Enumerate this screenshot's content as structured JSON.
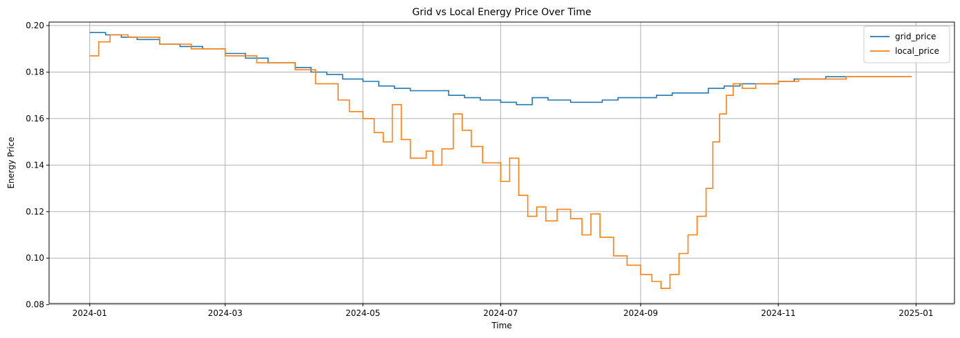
{
  "chart_data": {
    "type": "line",
    "title": "Grid vs Local Energy Price Over Time",
    "xlabel": "Time",
    "ylabel": "Energy Price",
    "x_ticks": [
      "2024-01",
      "2024-03",
      "2024-05",
      "2024-07",
      "2024-09",
      "2024-11",
      "2025-01"
    ],
    "y_ticks": [
      "0.08",
      "0.10",
      "0.12",
      "0.14",
      "0.16",
      "0.18",
      "0.20"
    ],
    "xlim": [
      "2023-12-14",
      "2025-01-18"
    ],
    "ylim": [
      0.0805,
      0.2015
    ],
    "grid": true,
    "legend_position": "top-right",
    "series": [
      {
        "name": "grid_price",
        "color": "#1f77b4",
        "points": [
          [
            "2024-01-01",
            0.197
          ],
          [
            "2024-01-08",
            0.196
          ],
          [
            "2024-01-15",
            0.195
          ],
          [
            "2024-01-22",
            0.194
          ],
          [
            "2024-02-01",
            0.192
          ],
          [
            "2024-02-10",
            0.191
          ],
          [
            "2024-02-20",
            0.19
          ],
          [
            "2024-03-01",
            0.188
          ],
          [
            "2024-03-10",
            0.186
          ],
          [
            "2024-03-20",
            0.184
          ],
          [
            "2024-04-01",
            0.182
          ],
          [
            "2024-04-08",
            0.18
          ],
          [
            "2024-04-15",
            0.179
          ],
          [
            "2024-04-22",
            0.177
          ],
          [
            "2024-05-01",
            0.176
          ],
          [
            "2024-05-08",
            0.174
          ],
          [
            "2024-05-15",
            0.173
          ],
          [
            "2024-05-22",
            0.172
          ],
          [
            "2024-06-01",
            0.172
          ],
          [
            "2024-06-08",
            0.17
          ],
          [
            "2024-06-15",
            0.169
          ],
          [
            "2024-06-22",
            0.168
          ],
          [
            "2024-07-01",
            0.167
          ],
          [
            "2024-07-08",
            0.166
          ],
          [
            "2024-07-15",
            0.169
          ],
          [
            "2024-07-22",
            0.168
          ],
          [
            "2024-08-01",
            0.167
          ],
          [
            "2024-08-08",
            0.167
          ],
          [
            "2024-08-15",
            0.168
          ],
          [
            "2024-08-22",
            0.169
          ],
          [
            "2024-09-01",
            0.169
          ],
          [
            "2024-09-08",
            0.17
          ],
          [
            "2024-09-15",
            0.171
          ],
          [
            "2024-09-22",
            0.171
          ],
          [
            "2024-10-01",
            0.173
          ],
          [
            "2024-10-08",
            0.174
          ],
          [
            "2024-10-15",
            0.175
          ],
          [
            "2024-10-22",
            0.175
          ],
          [
            "2024-11-01",
            0.176
          ],
          [
            "2024-11-08",
            0.177
          ],
          [
            "2024-11-15",
            0.177
          ],
          [
            "2024-11-22",
            0.178
          ],
          [
            "2024-12-01",
            0.178
          ],
          [
            "2024-12-10",
            0.178
          ],
          [
            "2024-12-20",
            0.178
          ],
          [
            "2024-12-30",
            0.178
          ]
        ]
      },
      {
        "name": "local_price",
        "color": "#ff7f0e",
        "points": [
          [
            "2024-01-01",
            0.187
          ],
          [
            "2024-01-05",
            0.193
          ],
          [
            "2024-01-10",
            0.196
          ],
          [
            "2024-01-18",
            0.195
          ],
          [
            "2024-02-01",
            0.192
          ],
          [
            "2024-02-15",
            0.19
          ],
          [
            "2024-03-01",
            0.187
          ],
          [
            "2024-03-15",
            0.184
          ],
          [
            "2024-04-01",
            0.181
          ],
          [
            "2024-04-10",
            0.175
          ],
          [
            "2024-04-20",
            0.168
          ],
          [
            "2024-04-25",
            0.163
          ],
          [
            "2024-05-01",
            0.16
          ],
          [
            "2024-05-06",
            0.154
          ],
          [
            "2024-05-10",
            0.15
          ],
          [
            "2024-05-14",
            0.166
          ],
          [
            "2024-05-18",
            0.151
          ],
          [
            "2024-05-22",
            0.143
          ],
          [
            "2024-05-29",
            0.146
          ],
          [
            "2024-06-01",
            0.14
          ],
          [
            "2024-06-05",
            0.147
          ],
          [
            "2024-06-10",
            0.162
          ],
          [
            "2024-06-14",
            0.155
          ],
          [
            "2024-06-18",
            0.148
          ],
          [
            "2024-06-23",
            0.141
          ],
          [
            "2024-07-01",
            0.133
          ],
          [
            "2024-07-05",
            0.143
          ],
          [
            "2024-07-09",
            0.127
          ],
          [
            "2024-07-13",
            0.118
          ],
          [
            "2024-07-17",
            0.122
          ],
          [
            "2024-07-21",
            0.116
          ],
          [
            "2024-07-26",
            0.121
          ],
          [
            "2024-08-01",
            0.117
          ],
          [
            "2024-08-06",
            0.11
          ],
          [
            "2024-08-10",
            0.119
          ],
          [
            "2024-08-14",
            0.109
          ],
          [
            "2024-08-20",
            0.101
          ],
          [
            "2024-08-26",
            0.097
          ],
          [
            "2024-09-01",
            0.093
          ],
          [
            "2024-09-06",
            0.09
          ],
          [
            "2024-09-10",
            0.087
          ],
          [
            "2024-09-14",
            0.093
          ],
          [
            "2024-09-18",
            0.102
          ],
          [
            "2024-09-22",
            0.11
          ],
          [
            "2024-09-26",
            0.118
          ],
          [
            "2024-09-30",
            0.13
          ],
          [
            "2024-10-03",
            0.15
          ],
          [
            "2024-10-06",
            0.162
          ],
          [
            "2024-10-09",
            0.17
          ],
          [
            "2024-10-12",
            0.175
          ],
          [
            "2024-10-16",
            0.173
          ],
          [
            "2024-10-22",
            0.175
          ],
          [
            "2024-11-01",
            0.176
          ],
          [
            "2024-11-10",
            0.177
          ],
          [
            "2024-11-20",
            0.177
          ],
          [
            "2024-12-01",
            0.178
          ],
          [
            "2024-12-10",
            0.178
          ],
          [
            "2024-12-20",
            0.178
          ],
          [
            "2024-12-30",
            0.178
          ]
        ]
      }
    ]
  }
}
